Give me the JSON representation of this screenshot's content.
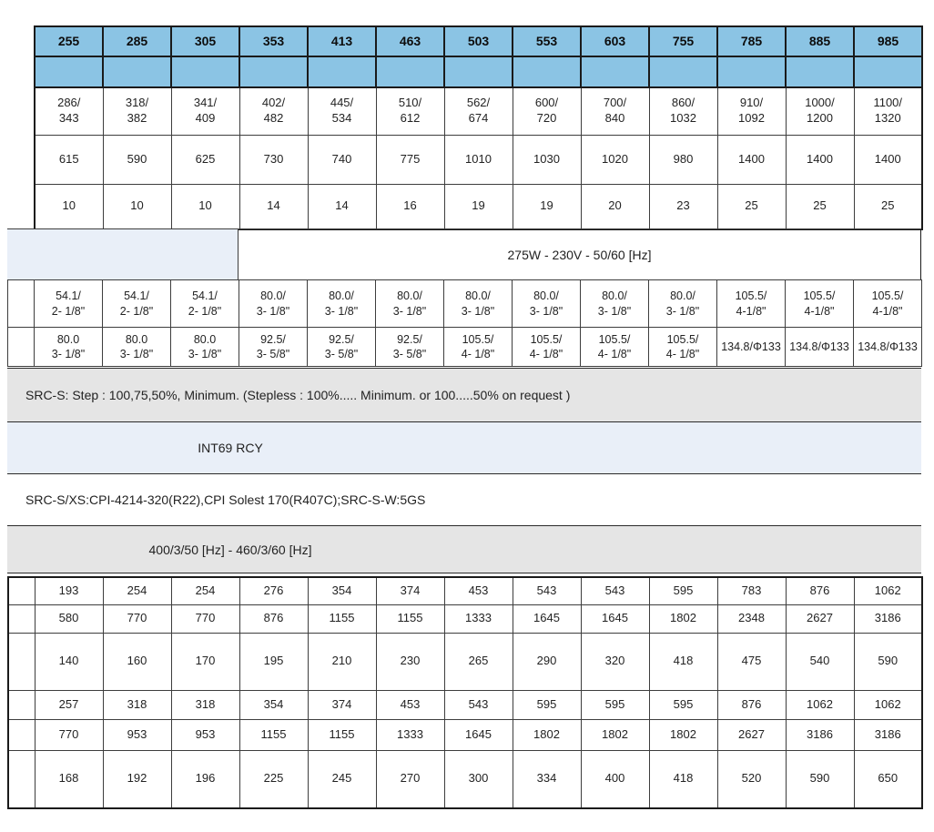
{
  "colors": {
    "header_blue": "#8BC4E4",
    "band_light_blue": "#E9EFF8",
    "band_gray": "#E5E5E5",
    "border_dark": "#1a1a1a",
    "text": "#232323"
  },
  "table": {
    "columns": [
      "255",
      "285",
      "305",
      "353",
      "413",
      "463",
      "503",
      "553",
      "603",
      "755",
      "785",
      "885",
      "985"
    ],
    "top_rows": [
      {
        "name": "model-header",
        "kind": "header",
        "cells": [
          "255",
          "285",
          "305",
          "353",
          "413",
          "463",
          "503",
          "553",
          "603",
          "755",
          "785",
          "885",
          "985"
        ]
      },
      {
        "name": "blue-spacer",
        "kind": "spacer",
        "cells": [
          "",
          "",
          "",
          "",
          "",
          "",
          "",
          "",
          "",
          "",
          "",
          "",
          ""
        ]
      },
      {
        "name": "displacement",
        "kind": "data",
        "cells": [
          "286/\n343",
          "318/\n382",
          "341/\n409",
          "402/\n482",
          "445/\n534",
          "510/\n612",
          "562/\n674",
          "600/\n720",
          "700/\n840",
          "860/\n1032",
          "910/\n1092",
          "1000/\n1200",
          "1100/\n1320"
        ]
      },
      {
        "name": "weight",
        "kind": "data",
        "cells": [
          "615",
          "590",
          "625",
          "730",
          "740",
          "775",
          "1010",
          "1030",
          "1020",
          "980",
          "1400",
          "1400",
          "1400"
        ]
      },
      {
        "name": "oil-charge",
        "kind": "data",
        "cells": [
          "10",
          "10",
          "10",
          "14",
          "14",
          "16",
          "19",
          "19",
          "20",
          "23",
          "25",
          "25",
          "25"
        ]
      }
    ],
    "fan_power": "275W - 230V - 50/60 [Hz]",
    "fitting_rows": [
      {
        "name": "suction-fitting",
        "kind": "data",
        "cells": [
          "54.1/\n2- 1/8\"",
          "54.1/\n2- 1/8\"",
          "54.1/\n2- 1/8\"",
          "80.0/\n3- 1/8\"",
          "80.0/\n3- 1/8\"",
          "80.0/\n3- 1/8\"",
          "80.0/\n3- 1/8\"",
          "80.0/\n3- 1/8\"",
          "80.0/\n3- 1/8\"",
          "80.0/\n3- 1/8\"",
          "105.5/\n4-1/8\"",
          "105.5/\n4-1/8\"",
          "105.5/\n4-1/8\""
        ]
      },
      {
        "name": "discharge-fitting",
        "kind": "data",
        "cells": [
          "80.0\n3- 1/8\"",
          "80.0\n3- 1/8\"",
          "80.0\n3- 1/8\"",
          "92.5/\n3- 5/8\"",
          "92.5/\n3- 5/8\"",
          "92.5/\n3- 5/8\"",
          "105.5/\n4- 1/8\"",
          "105.5/\n4- 1/8\"",
          "105.5/\n4- 1/8\"",
          "105.5/\n4- 1/8\"",
          "134.8/Φ133",
          "134.8/Φ133",
          "134.8/Φ133"
        ]
      }
    ],
    "capacity_control_note": "SRC-S: Step : 100,75,50%, Minimum. (Stepless : 100%..... Minimum. or 100.....50% on request )",
    "motor_protection": "INT69 RCY",
    "oil_note": "SRC-S/XS:CPI-4214-320(R22),CPI Solest 170(R407C);SRC-S-W:5GS",
    "power_supply": "400/3/50 [Hz] - 460/3/60 [Hz]",
    "bottom_rows": [
      {
        "name": "current-1",
        "kind": "data",
        "cells": [
          "193",
          "254",
          "254",
          "276",
          "354",
          "374",
          "453",
          "543",
          "543",
          "595",
          "783",
          "876",
          "1062"
        ]
      },
      {
        "name": "current-2",
        "kind": "data",
        "cells": [
          "580",
          "770",
          "770",
          "876",
          "1155",
          "1155",
          "1333",
          "1645",
          "1645",
          "1802",
          "2348",
          "2627",
          "3186"
        ]
      },
      {
        "name": "power-input-1",
        "kind": "data",
        "cells": [
          "140",
          "160",
          "170",
          "195",
          "210",
          "230",
          "265",
          "290",
          "320",
          "418",
          "475",
          "540",
          "590"
        ]
      },
      {
        "name": "current-3",
        "kind": "data",
        "cells": [
          "257",
          "318",
          "318",
          "354",
          "374",
          "453",
          "543",
          "595",
          "595",
          "595",
          "876",
          "1062",
          "1062"
        ]
      },
      {
        "name": "current-4",
        "kind": "data",
        "cells": [
          "770",
          "953",
          "953",
          "1155",
          "1155",
          "1333",
          "1645",
          "1802",
          "1802",
          "1802",
          "2627",
          "3186",
          "3186"
        ]
      },
      {
        "name": "power-input-2",
        "kind": "data",
        "cells": [
          "168",
          "192",
          "196",
          "225",
          "245",
          "270",
          "300",
          "334",
          "400",
          "418",
          "520",
          "590",
          "650"
        ]
      }
    ]
  }
}
